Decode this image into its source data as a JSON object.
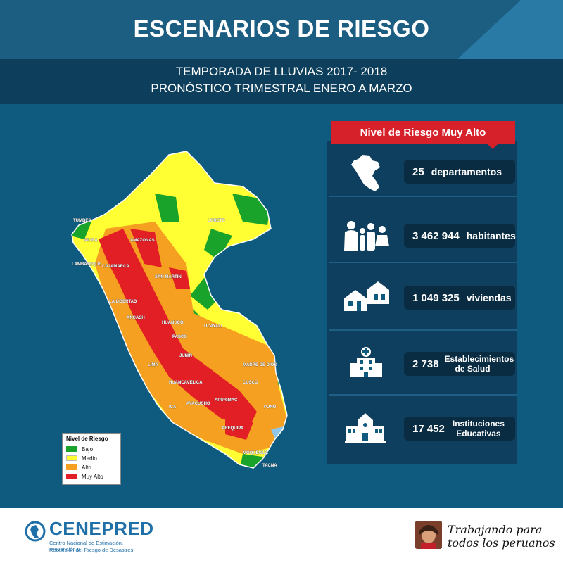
{
  "header": {
    "title": "ESCENARIOS DE RIESGO",
    "subtitle_line1": "TEMPORADA DE LLUVIAS 2017- 2018",
    "subtitle_line2": "PRONÓSTICO TRIMESTRAL ENERO A MARZO"
  },
  "map": {
    "region_labels": [
      "TUMBES",
      "PIURA",
      "AMAZONAS",
      "LAMBAYEQUE",
      "CAJAMARCA",
      "LORETO",
      "SAN MARTIN",
      "LA LIBERTAD",
      "ANCASH",
      "HUANUCO",
      "UCAYALI",
      "PASCO",
      "JUNIN",
      "LIMA",
      "HUANCAVELICA",
      "MADRE DE DIOS",
      "CUSCO",
      "ICA",
      "AYACUCHO",
      "APURIMAC",
      "PUNO",
      "AREQUIPA",
      "MOQUEGUA",
      "TACNA"
    ],
    "colors": {
      "bajo": "#1aa32a",
      "medio": "#ffff33",
      "alto": "#f6a022",
      "muy_alto": "#e31f26"
    }
  },
  "legend": {
    "title": "Nivel de Riesgo",
    "items": [
      {
        "label": "Bajo",
        "color": "#1aa32a"
      },
      {
        "label": "Medio",
        "color": "#ffff33"
      },
      {
        "label": "Alto",
        "color": "#f6a022"
      },
      {
        "label": "Muy Alto",
        "color": "#e31f26"
      }
    ]
  },
  "stats": {
    "header": "Nivel de Riesgo Muy Alto",
    "items": [
      {
        "value": "25",
        "label": "departamentos",
        "icon": "peru-map-icon"
      },
      {
        "value": "3 462 944",
        "label": "habitantes",
        "icon": "people-icon"
      },
      {
        "value": "1 049 325",
        "label": "viviendas",
        "icon": "houses-icon"
      },
      {
        "value": "2 738",
        "label": "Establecimientos de Salud",
        "icon": "hospital-icon"
      },
      {
        "value": "17 452",
        "label": "Instituciones Educativas",
        "icon": "school-icon"
      }
    ]
  },
  "footer": {
    "logo_name": "CENEPRED",
    "logo_sub_line1": "Centro Nacional de Estimación, Prevención y",
    "logo_sub_line2": "Reducción del Riesgo de Desastres",
    "slogan_line1": "Trabajando para",
    "slogan_line2": "todos los peruanos"
  }
}
